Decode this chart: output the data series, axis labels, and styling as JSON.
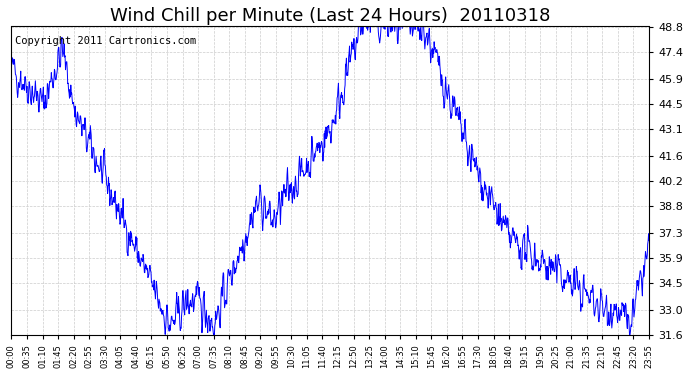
{
  "title": "Wind Chill per Minute (Last 24 Hours)  20110318",
  "copyright_text": "Copyright 2011 Cartronics.com",
  "line_color": "#0000FF",
  "bg_color": "#FFFFFF",
  "grid_color": "#CCCCCC",
  "yticks": [
    31.6,
    33.0,
    34.5,
    35.9,
    37.3,
    38.8,
    40.2,
    41.6,
    43.1,
    44.5,
    45.9,
    47.4,
    48.8
  ],
  "ymin": 31.6,
  "ymax": 48.8,
  "xtick_labels": [
    "00:00",
    "00:35",
    "01:10",
    "01:45",
    "02:20",
    "02:55",
    "03:30",
    "04:05",
    "04:40",
    "05:15",
    "05:50",
    "06:25",
    "07:00",
    "07:35",
    "08:10",
    "08:45",
    "09:20",
    "09:55",
    "10:30",
    "11:05",
    "11:40",
    "12:15",
    "12:50",
    "13:25",
    "14:00",
    "14:35",
    "15:10",
    "15:45",
    "16:20",
    "16:55",
    "17:30",
    "18:05",
    "18:40",
    "19:15",
    "19:50",
    "20:25",
    "21:00",
    "21:35",
    "22:10",
    "22:45",
    "23:20",
    "23:55"
  ],
  "title_fontsize": 13,
  "copyright_fontsize": 7.5,
  "line_width": 0.7
}
